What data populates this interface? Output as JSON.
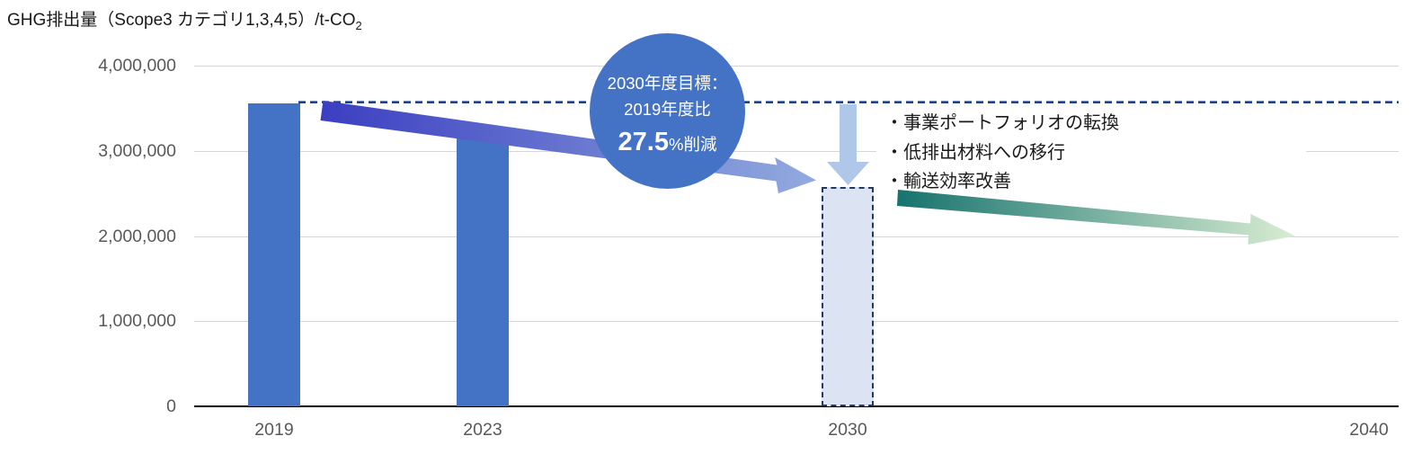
{
  "title": {
    "main": "GHG排出量（Scope3 カテゴリ1,3,4,5）/t-CO",
    "subscript": "2"
  },
  "chart_data": {
    "type": "bar",
    "title": "GHG排出量（Scope3 カテゴリ1,3,4,5）/t-CO2",
    "xlabel": "",
    "ylabel": "GHG排出量 t-CO2",
    "ylim": [
      0,
      4000000
    ],
    "grid": true,
    "yticks": [
      {
        "value": 4000000,
        "label": "4,000,000"
      },
      {
        "value": 3000000,
        "label": "3,000,000"
      },
      {
        "value": 2000000,
        "label": "2,000,000"
      },
      {
        "value": 1000000,
        "label": "1,000,000"
      },
      {
        "value": 0,
        "label": "0"
      }
    ],
    "x_axis_years": [
      {
        "year": 2019,
        "label": "2019"
      },
      {
        "year": 2023,
        "label": "2023"
      },
      {
        "year": 2030,
        "label": "2030"
      },
      {
        "year": 2040,
        "label": "2040"
      }
    ],
    "bars": [
      {
        "year": 2019,
        "label": "2019",
        "value": 3560000,
        "style": "solid"
      },
      {
        "year": 2023,
        "label": "2023",
        "value": 3210000,
        "style": "solid"
      },
      {
        "year": 2030,
        "label": "2030",
        "value": 2580000,
        "style": "dashed-projected"
      }
    ],
    "target_line": {
      "value": 3560000,
      "style": "dashed",
      "meaning": "2019年度排出量レベル（基準線）"
    },
    "trend_arrows": [
      {
        "name": "historical-reduction-arrow",
        "from_year": 2019,
        "to_year": 2030,
        "meaning": "2019年度比から2030年度目標への削減トレンド"
      },
      {
        "name": "target-drop-arrow",
        "year": 2030,
        "meaning": "基準線から2030年度目標水準への低下"
      },
      {
        "name": "future-reduction-arrow",
        "from_year": 2030,
        "to_year": 2040,
        "meaning": "2030年以降のさらなる削減見通し"
      }
    ]
  },
  "badge": {
    "line1": "2030年度目標：",
    "line2": "2019年度比",
    "value": "27.5",
    "suffix": "%削減"
  },
  "annotations": {
    "bullets": [
      "・事業ポートフォリオの転換",
      "・低排出材料への移行",
      "・輸送効率改善"
    ]
  },
  "colors": {
    "bar": "#4472C4",
    "projected_bar_fill": "#DCE3F3",
    "projected_bar_border": "#1F3864",
    "target_line": "#1F3E8C",
    "arrow_solid_start": "#3B3EC1",
    "arrow_solid_end": "#92ABDE",
    "arrow_down": "#AFC7E8",
    "arrow_projected_start": "#17736E",
    "arrow_projected_end": "#D9EDD2",
    "axis_label": "#595959",
    "gridline": "#D6D6D6",
    "badge_bg": "#4472C4",
    "badge_text": "#FFFFFF"
  }
}
